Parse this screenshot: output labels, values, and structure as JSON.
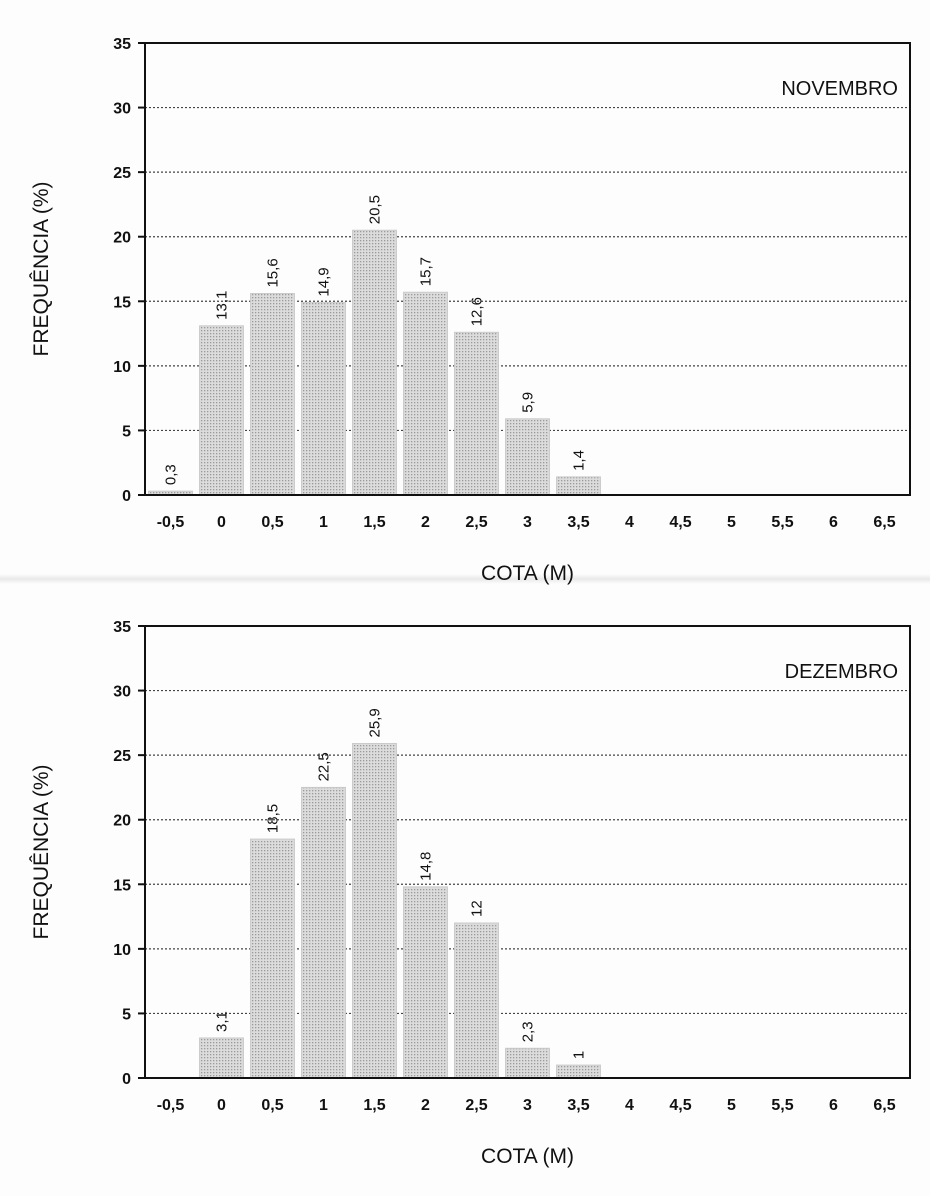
{
  "chart_data": [
    {
      "type": "bar",
      "title": "NOVEMBRO",
      "xlabel": "COTA (M)",
      "ylabel": "FREQUÊNCIA (%)",
      "ylim": [
        0,
        35
      ],
      "yticks": [
        "0",
        "5",
        "10",
        "15",
        "20",
        "25",
        "30",
        "35"
      ],
      "categories": [
        "-0,5",
        "0",
        "0,5",
        "1",
        "1,5",
        "2",
        "2,5",
        "3",
        "3,5",
        "4",
        "4,5",
        "5",
        "5,5",
        "6",
        "6,5"
      ],
      "values": [
        0.3,
        13.1,
        15.6,
        14.9,
        20.5,
        15.7,
        12.6,
        5.9,
        1.4,
        null,
        null,
        null,
        null,
        null,
        null
      ],
      "data_labels": [
        "0,3",
        "13,1",
        "15,6",
        "14,9",
        "20,5",
        "15,7",
        "12,6",
        "5,9",
        "1,4",
        "",
        "",
        "",
        "",
        "",
        ""
      ],
      "grid": true,
      "title_position": "top-right"
    },
    {
      "type": "bar",
      "title": "DEZEMBRO",
      "xlabel": "COTA (M)",
      "ylabel": "FREQUÊNCIA (%)",
      "ylim": [
        0,
        35
      ],
      "yticks": [
        "0",
        "5",
        "10",
        "15",
        "20",
        "25",
        "30",
        "35"
      ],
      "categories": [
        "-0,5",
        "0",
        "0,5",
        "1",
        "1,5",
        "2",
        "2,5",
        "3",
        "3,5",
        "4",
        "4,5",
        "5",
        "5,5",
        "6",
        "6,5"
      ],
      "values": [
        null,
        3.1,
        18.5,
        22.5,
        25.9,
        14.8,
        12,
        2.3,
        1,
        null,
        null,
        null,
        null,
        null,
        null
      ],
      "data_labels": [
        "",
        "3,1",
        "18,5",
        "22,5",
        "25,9",
        "14,8",
        "12",
        "2,3",
        "1",
        "",
        "",
        "",
        "",
        "",
        ""
      ],
      "grid": true,
      "title_position": "top-right"
    }
  ],
  "colors": {
    "bar_fill": "#d8d8d8",
    "bar_dot": "#9a9a9a",
    "grid": "#444444",
    "frame": "#111111"
  }
}
